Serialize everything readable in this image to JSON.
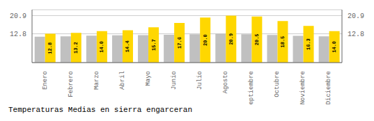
{
  "chart_data": {
    "type": "bar",
    "title": "Temperaturas Medias en sierra engarceran",
    "categories": [
      "Enero",
      "Febrero",
      "Marzo",
      "Abril",
      "Mayo",
      "Junio",
      "Julio",
      "Agosto",
      "Septiembre",
      "Octubre",
      "Noviembre",
      "Diciembre"
    ],
    "series": [
      {
        "color": "#C0C0C0",
        "values": [
          11.5,
          11.7,
          12.0,
          12.1,
          12.2,
          12.4,
          12.6,
          12.8,
          12.6,
          12.3,
          11.9,
          11.7
        ]
      },
      {
        "color": "#FFD700",
        "values": [
          12.8,
          13.2,
          14.0,
          14.4,
          15.7,
          17.6,
          20.0,
          20.9,
          20.5,
          18.5,
          16.3,
          14.0
        ],
        "data_labels": true,
        "value_labels": [
          "12.8",
          "13.2",
          "14.0",
          "14.4",
          "15.7",
          "17.6",
          "20.0",
          "20.9",
          "20.5",
          "18.5",
          "16.3",
          "14.0"
        ]
      }
    ],
    "ylim": [
      0,
      23.5
    ],
    "yticks": [
      12.8,
      20.9
    ],
    "y2lim": [
      0,
      23.5
    ],
    "y2ticks": [
      12.8,
      20.9
    ],
    "grid": true
  }
}
